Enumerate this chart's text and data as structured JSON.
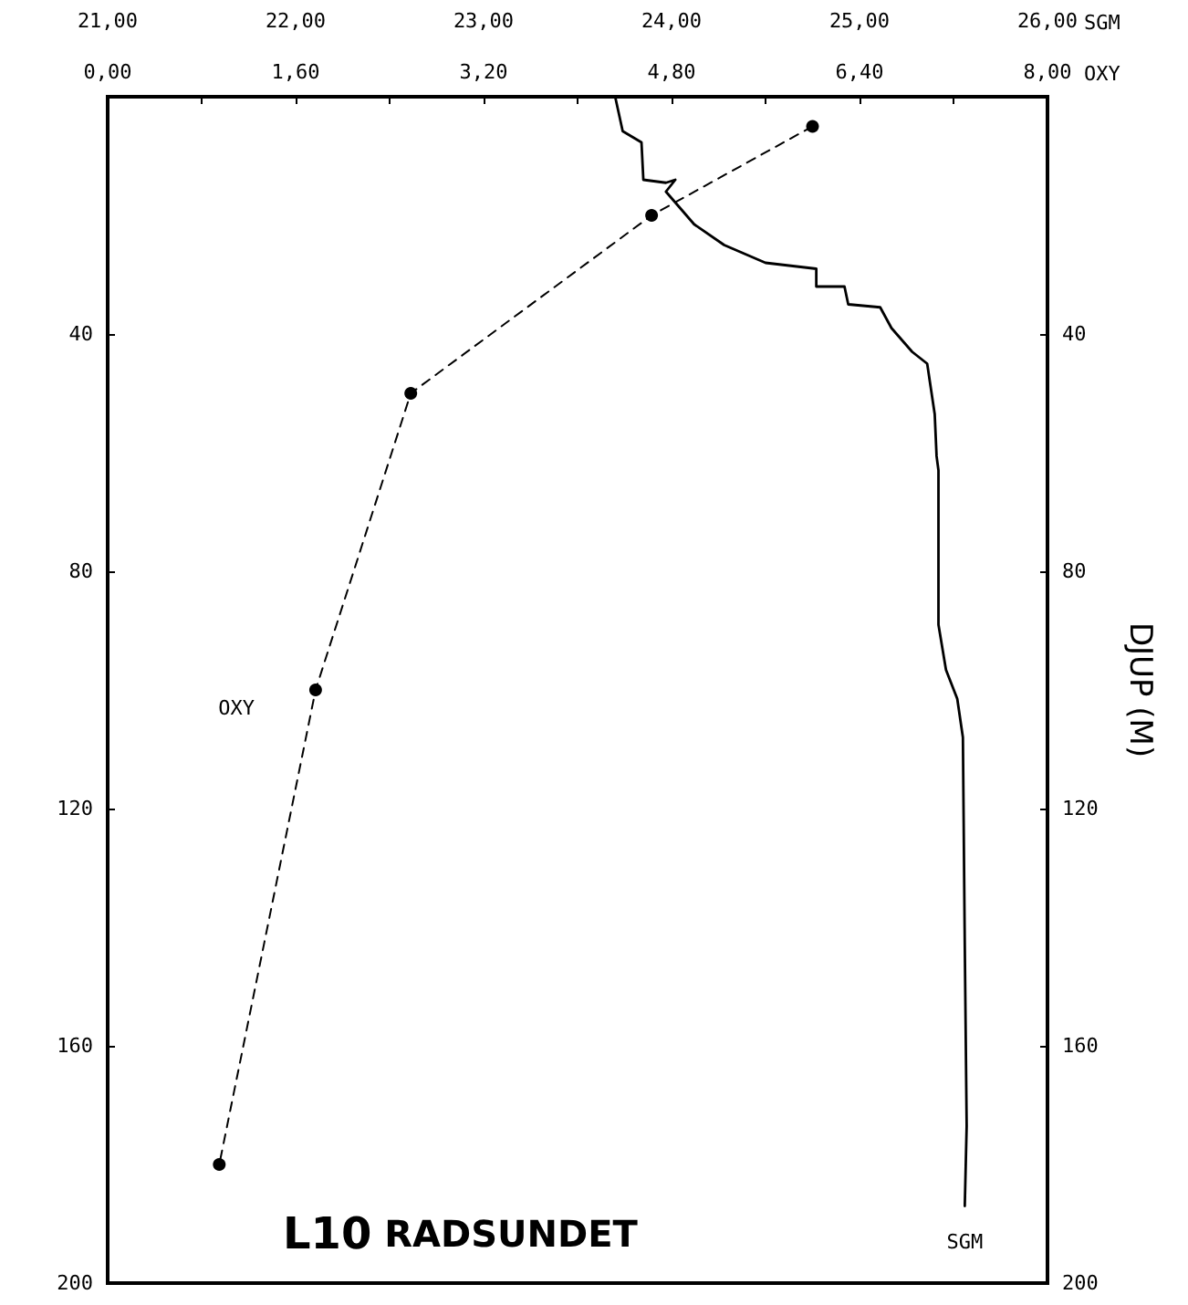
{
  "chart_data": {
    "type": "line",
    "title": "L10 RADSUNDET",
    "xlabel": "SGM",
    "x2label": "OXY",
    "y2label": "DJUP (M)",
    "xlim": [
      21,
      26
    ],
    "xticks": [
      {
        "value": 21,
        "label": "21,00"
      },
      {
        "value": 21.5,
        "label": null
      },
      {
        "value": 22,
        "label": "22,00"
      },
      {
        "value": 22.5,
        "label": null
      },
      {
        "value": 23,
        "label": "23,00"
      },
      {
        "value": 23.5,
        "label": null
      },
      {
        "value": 24,
        "label": "24,00"
      },
      {
        "value": 24.5,
        "label": null
      },
      {
        "value": 25,
        "label": "25,00"
      },
      {
        "value": 25.5,
        "label": null
      },
      {
        "value": 26,
        "label": "26,00"
      }
    ],
    "x2lim": [
      0,
      8
    ],
    "x2ticks": [
      {
        "value": 0,
        "label": "0,00"
      },
      {
        "value": 0.8,
        "label": null
      },
      {
        "value": 1.6,
        "label": "1,60"
      },
      {
        "value": 2.4,
        "label": null
      },
      {
        "value": 3.2,
        "label": "3,20"
      },
      {
        "value": 4,
        "label": null
      },
      {
        "value": 4.8,
        "label": "4,80"
      },
      {
        "value": 5.6,
        "label": null
      },
      {
        "value": 6.4,
        "label": "6,40"
      },
      {
        "value": 7.2,
        "label": null
      },
      {
        "value": 8,
        "label": "8,00"
      }
    ],
    "ylim": [
      200,
      0
    ],
    "yticks": [
      {
        "value": 0,
        "label": null
      },
      40,
      80,
      120,
      160,
      200
    ],
    "y2lim": [
      200,
      0
    ],
    "y2ticks": [
      {
        "value": 0,
        "label": null
      },
      40,
      80,
      120,
      160,
      200
    ],
    "grid": false,
    "legend": false,
    "series": [
      {
        "name": "SGM",
        "color": "#000000",
        "marker": "none",
        "line_style": "solid",
        "x": [
          23.7,
          23.74,
          23.84,
          23.85,
          23.97,
          24.02,
          23.97,
          24.12,
          24.28,
          24.5,
          24.77,
          24.77,
          24.92,
          24.94,
          25.11,
          25.17,
          25.28,
          25.36,
          25.4,
          25.41,
          25.42,
          25.42,
          25.46,
          25.52,
          25.55,
          25.56,
          25.57,
          25.56
        ],
        "values": [
          0,
          5.8,
          7.7,
          14,
          14.5,
          14,
          16,
          21.5,
          25,
          28,
          29,
          32,
          32,
          35,
          35.5,
          39,
          43,
          45,
          53.5,
          60.6,
          63,
          89,
          96.6,
          101.5,
          108,
          143,
          173.5,
          187
        ]
      },
      {
        "name": "OXY",
        "color": "#000000",
        "marker": "circle",
        "line_style": "dashed",
        "axis": "x2",
        "x": [
          6.0,
          4.63,
          2.58,
          1.77,
          0.95
        ],
        "values": [
          5,
          20,
          50,
          100,
          180
        ]
      }
    ]
  }
}
